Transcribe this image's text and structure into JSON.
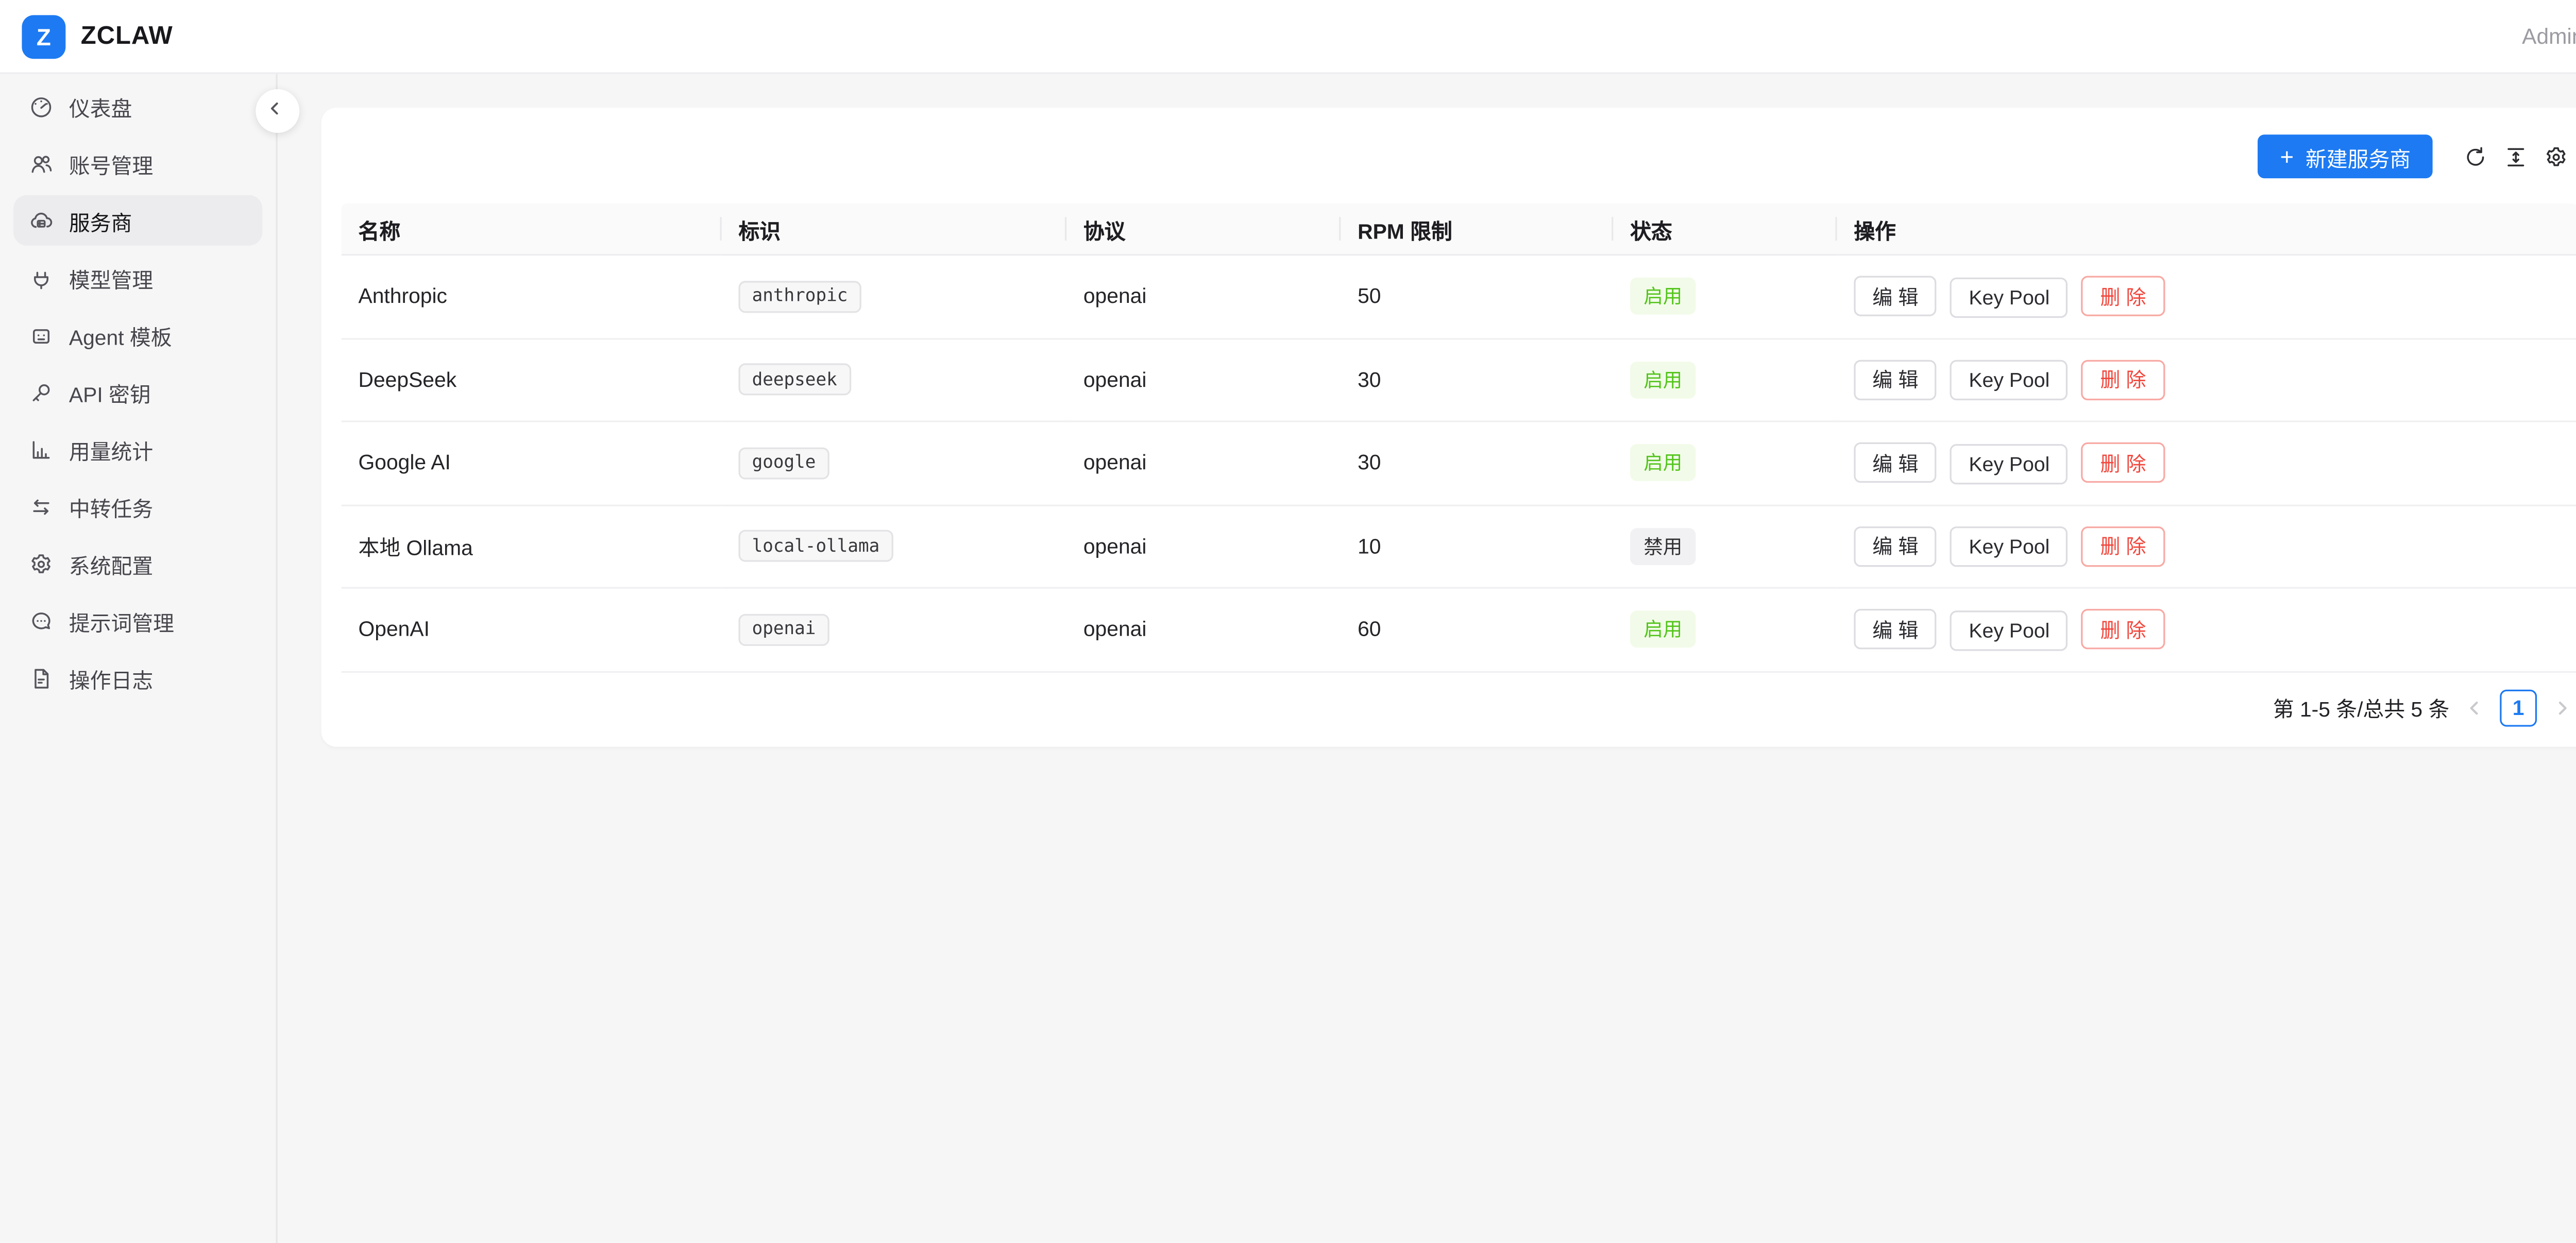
{
  "header": {
    "logo_letter": "Z",
    "brand": "ZCLAW",
    "user": "Admin"
  },
  "sidebar": {
    "items": [
      {
        "label": "仪表盘",
        "icon": "gauge",
        "active": false
      },
      {
        "label": "账号管理",
        "icon": "users",
        "active": false
      },
      {
        "label": "服务商",
        "icon": "cloud-server",
        "active": true
      },
      {
        "label": "模型管理",
        "icon": "plug",
        "active": false
      },
      {
        "label": "Agent 模板",
        "icon": "robot",
        "active": false
      },
      {
        "label": "API 密钥",
        "icon": "key",
        "active": false
      },
      {
        "label": "用量统计",
        "icon": "bar-chart",
        "active": false
      },
      {
        "label": "中转任务",
        "icon": "swap",
        "active": false
      },
      {
        "label": "系统配置",
        "icon": "gear",
        "active": false
      },
      {
        "label": "提示词管理",
        "icon": "chat",
        "active": false
      },
      {
        "label": "操作日志",
        "icon": "file",
        "active": false
      }
    ]
  },
  "toolbar": {
    "plus": "+",
    "new_button_label": "新建服务商",
    "icons": [
      "refresh",
      "column-height",
      "gear"
    ]
  },
  "table": {
    "columns": [
      "名称",
      "标识",
      "协议",
      "RPM 限制",
      "状态",
      "操作"
    ],
    "rows": [
      {
        "name": "Anthropic",
        "slug": "anthropic",
        "protocol": "openai",
        "rpm": "50",
        "status": "启用",
        "status_type": "enabled"
      },
      {
        "name": "DeepSeek",
        "slug": "deepseek",
        "protocol": "openai",
        "rpm": "30",
        "status": "启用",
        "status_type": "enabled"
      },
      {
        "name": "Google AI",
        "slug": "google",
        "protocol": "openai",
        "rpm": "30",
        "status": "启用",
        "status_type": "enabled"
      },
      {
        "name": "本地 Ollama",
        "slug": "local-ollama",
        "protocol": "openai",
        "rpm": "10",
        "status": "禁用",
        "status_type": "disabled"
      },
      {
        "name": "OpenAI",
        "slug": "openai",
        "protocol": "openai",
        "rpm": "60",
        "status": "启用",
        "status_type": "enabled"
      }
    ],
    "actions": {
      "edit": "编 辑",
      "key_pool": "Key Pool",
      "delete": "删 除"
    }
  },
  "pagination": {
    "summary": "第 1-5 条/总共 5 条",
    "page": "1"
  },
  "colors": {
    "accent": "#1d7af2",
    "success": "#52c41a",
    "success-bg": "#f2fbe9",
    "danger": "#f0483e",
    "danger-border": "#f8a9a4"
  }
}
